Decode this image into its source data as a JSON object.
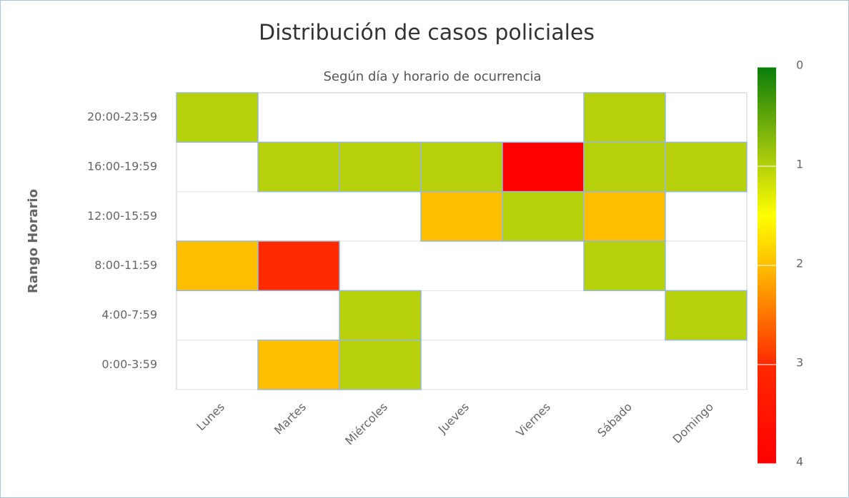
{
  "chart_data": {
    "type": "heatmap",
    "title": "Distribución de casos policiales",
    "subtitle": "Según día y horario de ocurrencia",
    "y_label": "Rango Horario",
    "x": [
      "Lunes",
      "Martes",
      "Miércoles",
      "Jueves",
      "Viernes",
      "Sábado",
      "Domingo"
    ],
    "y": [
      "20:00-23:59",
      "16:00-19:59",
      "12:00-15:59",
      "8:00-11:59",
      "4:00-7:59",
      "0:00-3:59"
    ],
    "values": [
      [
        1,
        null,
        null,
        null,
        null,
        1,
        null
      ],
      [
        null,
        1,
        1,
        1,
        4,
        1,
        1
      ],
      [
        null,
        null,
        null,
        2,
        1,
        2,
        null
      ],
      [
        2,
        3,
        null,
        null,
        null,
        1,
        null
      ],
      [
        null,
        null,
        1,
        null,
        null,
        null,
        1
      ],
      [
        null,
        2,
        1,
        null,
        null,
        null,
        null
      ]
    ],
    "clim": [
      0,
      4
    ],
    "cticks": [
      0,
      1,
      2,
      3,
      4
    ],
    "color_stops": [
      {
        "value": 0,
        "color": "#0a7d0a"
      },
      {
        "value": 1,
        "color": "#b6d10b"
      },
      {
        "value": 1.5,
        "color": "#ffff00"
      },
      {
        "value": 2,
        "color": "#ffbf00"
      },
      {
        "value": 3,
        "color": "#ff2a00"
      },
      {
        "value": 4,
        "color": "#ff0000"
      }
    ],
    "grid": true
  }
}
